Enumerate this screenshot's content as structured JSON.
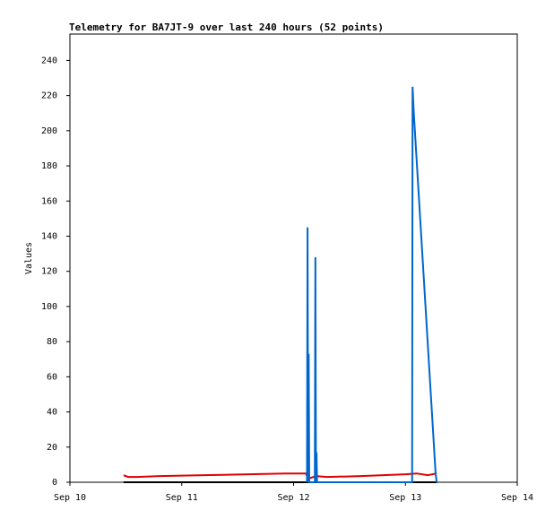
{
  "chart_data": {
    "type": "line",
    "title": "Telemetry for BA7JT-9 over last 240 hours (52 points)",
    "y_label": "Values",
    "xlim": [
      0,
      4
    ],
    "xticks": [
      {
        "value": 0,
        "label": "Sep 10"
      },
      {
        "value": 1,
        "label": "Sep 11"
      },
      {
        "value": 2,
        "label": "Sep 12"
      },
      {
        "value": 3,
        "label": "Sep 13"
      },
      {
        "value": 4,
        "label": "Sep 14"
      }
    ],
    "ylim": [
      0,
      255
    ],
    "yticks": [
      0,
      20,
      40,
      60,
      80,
      100,
      120,
      140,
      160,
      180,
      200,
      220,
      240
    ],
    "series": [
      {
        "color": "#000000",
        "x": [
          0.48,
          3.28
        ],
        "values": [
          0,
          0
        ]
      },
      {
        "color": "#e00000",
        "x": [
          0.48,
          0.52,
          0.6,
          0.8,
          1.2,
          1.6,
          1.93,
          2.11,
          2.13,
          2.2,
          2.3,
          2.6,
          3.0,
          3.1,
          3.2,
          3.28
        ],
        "values": [
          4,
          3,
          3,
          3.5,
          4,
          4.5,
          5,
          5,
          2,
          3.5,
          3,
          3.5,
          4.5,
          5,
          4,
          5
        ]
      },
      {
        "color": "#0066cc",
        "x": [
          2.12,
          2.125,
          2.13,
          2.135,
          2.14,
          2.19,
          2.195,
          2.2,
          2.205,
          2.21,
          3.06,
          3.064,
          3.075,
          3.27,
          3.28
        ],
        "values": [
          0,
          145,
          0,
          73,
          0,
          0,
          128,
          0,
          17,
          0,
          0,
          225,
          210,
          5,
          0
        ]
      }
    ]
  }
}
